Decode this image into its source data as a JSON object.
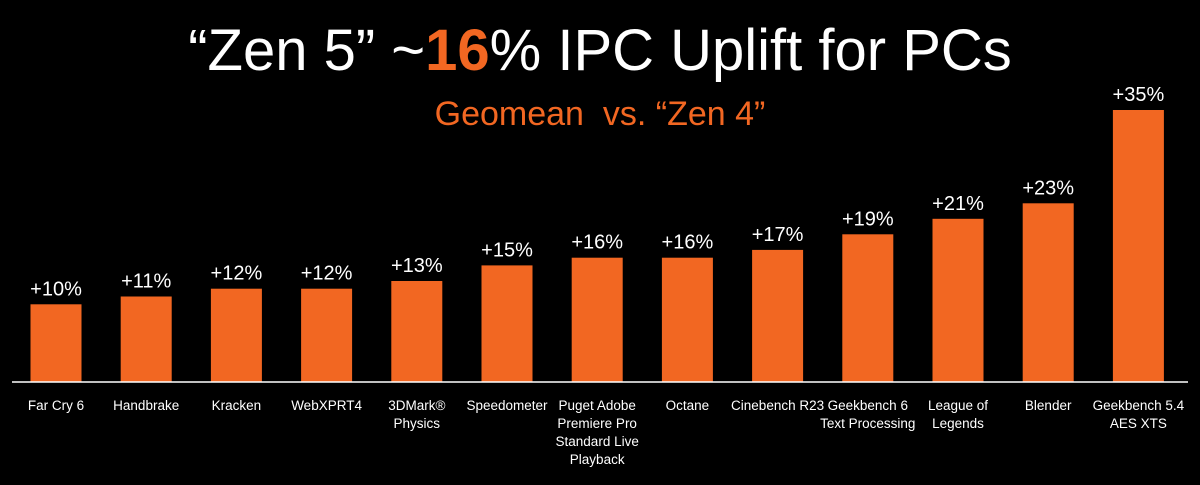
{
  "title": {
    "prefix": "“Zen 5” ~",
    "highlight": "16",
    "suffix": "% IPC Uplift for PCs"
  },
  "subtitle": "Geomean  vs. “Zen 4”",
  "colors": {
    "background": "#000000",
    "bar": "#f26722",
    "text": "#ffffff",
    "accent": "#f26722"
  },
  "chart_data": {
    "type": "bar",
    "title": "“Zen 5” ~16% IPC Uplift for PCs",
    "subtitle": "Geomean  vs. “Zen 4”",
    "categories": [
      [
        "Far Cry 6"
      ],
      [
        "Handbrake"
      ],
      [
        "Kracken"
      ],
      [
        "WebXPRT4"
      ],
      [
        "3DMark®",
        "Physics"
      ],
      [
        "Speedometer"
      ],
      [
        "Puget Adobe",
        "Premiere Pro",
        "Standard Live",
        "Playback"
      ],
      [
        "Octane"
      ],
      [
        "Cinebench R23"
      ],
      [
        "Geekbench 6",
        "Text Processing"
      ],
      [
        "League of",
        "Legends"
      ],
      [
        "Blender"
      ],
      [
        "Geekbench 5.4",
        "AES XTS"
      ]
    ],
    "values": [
      10,
      11,
      12,
      12,
      13,
      15,
      16,
      16,
      17,
      19,
      21,
      23,
      35
    ],
    "labels": [
      "+10%",
      "+11%",
      "+12%",
      "+12%",
      "+13%",
      "+15%",
      "+16%",
      "+16%",
      "+17%",
      "+19%",
      "+21%",
      "+23%",
      "+35%"
    ],
    "ylim": [
      0,
      35
    ],
    "grid": false,
    "legend": "none"
  }
}
